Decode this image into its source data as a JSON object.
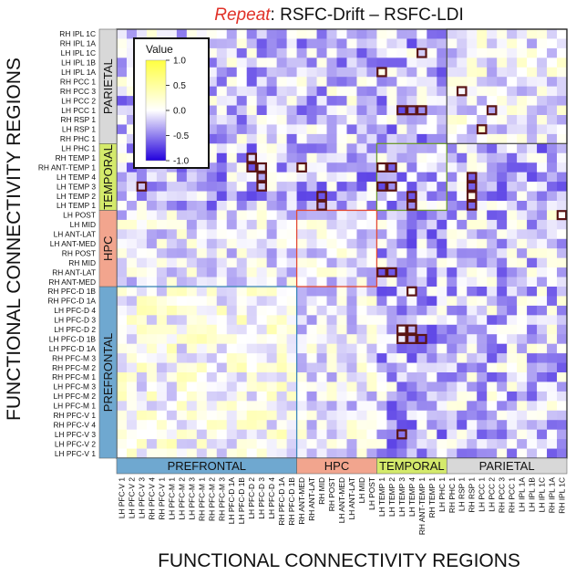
{
  "chart_data": {
    "type": "heatmap",
    "title_emphasis": "Repeat",
    "title_rest": ": RSFC-Drift – RSFC-LDI",
    "xlabel": "FUNCTIONAL CONNECTIVITY REGIONS",
    "ylabel": "FUNCTIONAL CONNECTIVITY REGIONS",
    "color_range": [
      -1.0,
      1.0
    ],
    "colorbar": {
      "title": "Value",
      "ticks": [
        1.0,
        0.5,
        0.0,
        -0.5,
        -1.0
      ],
      "tick_labels": [
        "1.0",
        "0.5",
        "0.0",
        "-0.5",
        "-1.0"
      ],
      "colors": [
        "#ffff40",
        "#ffffff",
        "#2200dd"
      ]
    },
    "row_labels": [
      "RH IPL 1C",
      "RH IPL 1A",
      "LH IPL 1C",
      "LH IPL 1B",
      "LH IPL 1A",
      "RH PCC 1",
      "RH PCC 3",
      "LH PCC 2",
      "LH PCC 1",
      "RH RSP 1",
      "LH RSP 1",
      "RH PHC 1",
      "LH PHC 1",
      "RH TEMP 1",
      "RH ANT-TEMP 1",
      "LH TEMP 4",
      "LH TEMP 3",
      "LH TEMP 2",
      "LH TEMP 1",
      "LH POST",
      "LH MID",
      "LH ANT-LAT",
      "LH ANT-MED",
      "RH POST",
      "RH MID",
      "RH ANT-LAT",
      "RH ANT-MED",
      "RH PFC-D 1B",
      "RH PFC-D 1A",
      "LH PFC-D 4",
      "LH PFC-D 3",
      "LH PFC-D 2",
      "LH PFC-D 1B",
      "LH PFC-D 1A",
      "RH PFC-M 3",
      "RH PFC-M 2",
      "RH PFC-M 1",
      "LH PFC-M 3",
      "LH PFC-M 2",
      "LH PFC-M 1",
      "RH PFC-V 1",
      "RH PFC-V 4",
      "LH PFC-V 3",
      "LH PFC-V 2",
      "LH PFC-V 1"
    ],
    "col_labels": [
      "LH PFC-V 1",
      "LH PFC-V 2",
      "LH PFC-V 3",
      "RH PFC-V 4",
      "RH PFC-V 1",
      "LH PFC-M 1",
      "LH PFC-M 2",
      "LH PFC-M 3",
      "RH PFC-M 1",
      "RH PFC-M 2",
      "RH PFC-M 3",
      "LH PFC-D 1A",
      "LH PFC-D 1B",
      "LH PFC-D 2",
      "LH PFC-D 3",
      "LH PFC-D 4",
      "RH PFC-D 1A",
      "RH PFC-D 1B",
      "RH ANT-MED",
      "RH ANT-LAT",
      "RH MID",
      "RH POST",
      "LH ANT-MED",
      "LH ANT-LAT",
      "LH MID",
      "LH POST",
      "LH TEMP 1",
      "LH TEMP 2",
      "LH TEMP 3",
      "LH TEMP 4",
      "RH ANT-TEMP 1",
      "RH TEMP 1",
      "LH PHC 1",
      "RH PHC 1",
      "LH RSP 1",
      "RH RSP 1",
      "LH PCC 1",
      "LH PCC 2",
      "RH PCC 3",
      "RH PCC 1",
      "LH IPL 1A",
      "LH IPL 1B",
      "LH IPL 1C",
      "RH IPL 1A",
      "RH IPL 1C"
    ],
    "groups": [
      {
        "name": "PREFRONTAL",
        "start": 0,
        "end": 17,
        "color": "#6fa8d0",
        "line": "#3b86b8"
      },
      {
        "name": "HPC",
        "start": 18,
        "end": 25,
        "color": "#f2a58e",
        "line": "#e34a33"
      },
      {
        "name": "TEMPORAL",
        "start": 26,
        "end": 32,
        "color": "#d4ea6b",
        "line": "#6e9a2e"
      },
      {
        "name": "PARIETAL",
        "start": 33,
        "end": 44,
        "color": "#d8d8d8",
        "line": "#555555"
      }
    ],
    "highlighted_cells": [
      {
        "row": "LH IPL 1A",
        "col": "LH TEMP 1"
      },
      {
        "row": "LH IPL 1C",
        "col": "RH ANT-TEMP 1"
      },
      {
        "row": "RH PCC 3",
        "col": "LH RSP 1"
      },
      {
        "row": "LH PCC 1",
        "col": "LH TEMP 3"
      },
      {
        "row": "LH PCC 1",
        "col": "LH TEMP 4"
      },
      {
        "row": "LH PCC 1",
        "col": "RH ANT-TEMP 1"
      },
      {
        "row": "LH PCC 1",
        "col": "LH PCC 2"
      },
      {
        "row": "LH RSP 1",
        "col": "LH PCC 1"
      },
      {
        "row": "RH TEMP 1",
        "col": "LH PFC-D 2"
      },
      {
        "row": "RH ANT-TEMP 1",
        "col": "LH PFC-D 2"
      },
      {
        "row": "RH ANT-TEMP 1",
        "col": "LH PFC-D 3"
      },
      {
        "row": "RH ANT-TEMP 1",
        "col": "RH ANT-MED"
      },
      {
        "row": "RH ANT-TEMP 1",
        "col": "LH TEMP 1"
      },
      {
        "row": "RH ANT-TEMP 1",
        "col": "LH TEMP 2"
      },
      {
        "row": "LH TEMP 4",
        "col": "LH PFC-D 3"
      },
      {
        "row": "LH TEMP 4",
        "col": "RH RSP 1"
      },
      {
        "row": "LH TEMP 3",
        "col": "LH PFC-V 3"
      },
      {
        "row": "LH TEMP 3",
        "col": "LH PFC-D 3"
      },
      {
        "row": "LH TEMP 3",
        "col": "LH TEMP 1"
      },
      {
        "row": "LH TEMP 3",
        "col": "LH TEMP 2"
      },
      {
        "row": "LH TEMP 3",
        "col": "RH RSP 1"
      },
      {
        "row": "LH TEMP 2",
        "col": "RH MID"
      },
      {
        "row": "LH TEMP 2",
        "col": "LH TEMP 4"
      },
      {
        "row": "LH TEMP 2",
        "col": "RH RSP 1"
      },
      {
        "row": "LH TEMP 1",
        "col": "RH MID"
      },
      {
        "row": "LH TEMP 1",
        "col": "LH TEMP 4"
      },
      {
        "row": "LH TEMP 1",
        "col": "RH RSP 1"
      },
      {
        "row": "LH POST",
        "col": "RH IPL 1C"
      },
      {
        "row": "RH ANT-LAT",
        "col": "LH TEMP 1"
      },
      {
        "row": "RH ANT-LAT",
        "col": "LH TEMP 2"
      },
      {
        "row": "RH PFC-D 1B",
        "col": "LH TEMP 4"
      },
      {
        "row": "LH PFC-D 2",
        "col": "LH TEMP 3"
      },
      {
        "row": "LH PFC-D 2",
        "col": "LH TEMP 4"
      },
      {
        "row": "LH PFC-D 1B",
        "col": "LH TEMP 3"
      },
      {
        "row": "LH PFC-D 1B",
        "col": "LH TEMP 4"
      },
      {
        "row": "LH PFC-D 1B",
        "col": "RH ANT-TEMP 1"
      },
      {
        "row": "LH PFC-V 3",
        "col": "LH TEMP 3"
      }
    ]
  }
}
